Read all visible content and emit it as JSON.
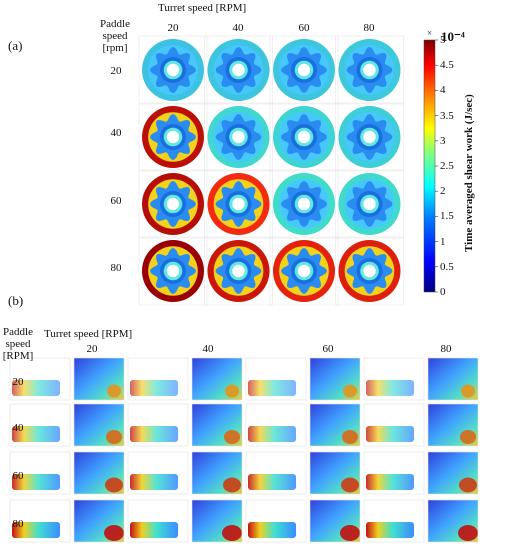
{
  "panel_a": {
    "label": "(a)",
    "turret_title": "Turret speed [RPM]",
    "paddle_title": [
      "Paddle",
      "speed",
      "[rpm]"
    ],
    "columns": [
      "20",
      "40",
      "60",
      "80"
    ],
    "rows": [
      "20",
      "40",
      "60",
      "80"
    ],
    "colorbar": {
      "exponent_label": "10⁻⁴",
      "exponent_prefix": "×",
      "ticks": [
        "5",
        "4.5",
        "4",
        "3.5",
        "3",
        "2.5",
        "2",
        "1.5",
        "1",
        "0.5",
        "0"
      ],
      "label": "Time averaged shear work (J/sec)",
      "range": [
        0,
        5
      ],
      "colors": [
        "#00007f",
        "#0000ff",
        "#0080ff",
        "#00ffff",
        "#80ff80",
        "#ffff00",
        "#ff8000",
        "#ff0000",
        "#7f0000"
      ]
    },
    "intensity": [
      [
        0.38,
        0.4,
        0.42,
        0.44
      ],
      [
        0.9,
        0.6,
        0.56,
        0.5
      ],
      [
        0.92,
        0.74,
        0.66,
        0.62
      ],
      [
        1.0,
        0.86,
        0.78,
        0.8
      ]
    ]
  },
  "panel_b": {
    "label": "(b)",
    "turret_title": "Turret speed [RPM]",
    "paddle_title": [
      "Paddle",
      "speed",
      "[RPM]"
    ],
    "columns": [
      "20",
      "40",
      "60",
      "80"
    ],
    "rows": [
      "20",
      "40",
      "60",
      "80"
    ]
  }
}
